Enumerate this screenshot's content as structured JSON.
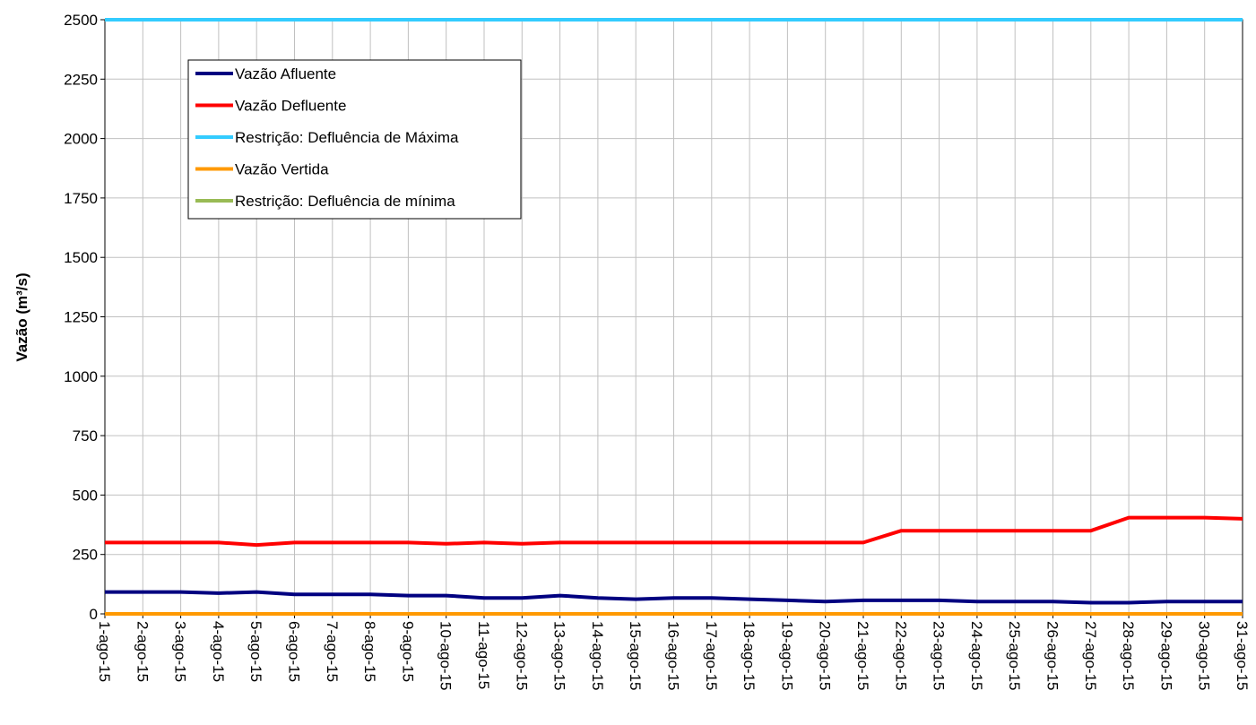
{
  "chart_data": {
    "type": "line",
    "ylabel": "Vazão (m³/s)",
    "xlabel": "",
    "ylim": [
      0,
      2500
    ],
    "yticks": [
      "0",
      "250",
      "500",
      "750",
      "1000",
      "1250",
      "1500",
      "1750",
      "2000",
      "2250",
      "2500"
    ],
    "grid": true,
    "legend_position": "top-left",
    "categories": [
      "1-ago-15",
      "2-ago-15",
      "3-ago-15",
      "4-ago-15",
      "5-ago-15",
      "6-ago-15",
      "7-ago-15",
      "8-ago-15",
      "9-ago-15",
      "10-ago-15",
      "11-ago-15",
      "12-ago-15",
      "13-ago-15",
      "14-ago-15",
      "15-ago-15",
      "16-ago-15",
      "17-ago-15",
      "18-ago-15",
      "19-ago-15",
      "20-ago-15",
      "21-ago-15",
      "22-ago-15",
      "23-ago-15",
      "24-ago-15",
      "25-ago-15",
      "26-ago-15",
      "27-ago-15",
      "28-ago-15",
      "29-ago-15",
      "30-ago-15",
      "31-ago-15"
    ],
    "series": [
      {
        "name": "Vazão Afluente",
        "color": "#000080",
        "values": [
          92,
          92,
          92,
          87,
          92,
          82,
          82,
          82,
          77,
          77,
          67,
          67,
          77,
          67,
          62,
          67,
          67,
          62,
          57,
          52,
          57,
          57,
          57,
          52,
          52,
          52,
          47,
          47,
          52,
          52,
          52
        ]
      },
      {
        "name": "Vazão Defluente",
        "color": "#ff0000",
        "values": [
          300,
          300,
          300,
          300,
          290,
          300,
          300,
          300,
          300,
          295,
          300,
          295,
          300,
          300,
          300,
          300,
          300,
          300,
          300,
          300,
          300,
          350,
          350,
          350,
          350,
          350,
          350,
          405,
          405,
          405,
          400
        ]
      },
      {
        "name": "Restrição: Defluência de Máxima",
        "color": "#33ccff",
        "values": [
          2500,
          2500,
          2500,
          2500,
          2500,
          2500,
          2500,
          2500,
          2500,
          2500,
          2500,
          2500,
          2500,
          2500,
          2500,
          2500,
          2500,
          2500,
          2500,
          2500,
          2500,
          2500,
          2500,
          2500,
          2500,
          2500,
          2500,
          2500,
          2500,
          2500,
          2500
        ]
      },
      {
        "name": "Vazão Vertida",
        "color": "#ff9900",
        "values": [
          0,
          0,
          0,
          0,
          0,
          0,
          0,
          0,
          0,
          0,
          0,
          0,
          0,
          0,
          0,
          0,
          0,
          0,
          0,
          0,
          0,
          0,
          0,
          0,
          0,
          0,
          0,
          0,
          0,
          0,
          0
        ]
      },
      {
        "name": "Restrição: Defluência de mínima",
        "color": "#99bb55",
        "values": [
          0,
          0,
          0,
          0,
          0,
          0,
          0,
          0,
          0,
          0,
          0,
          0,
          0,
          0,
          0,
          0,
          0,
          0,
          0,
          0,
          0,
          0,
          0,
          0,
          0,
          0,
          0,
          0,
          0,
          0,
          0
        ]
      }
    ]
  }
}
